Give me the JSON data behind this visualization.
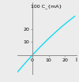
{
  "title": "",
  "xlabel": "i",
  "ylabel": "100 C_{mA}",
  "line_color": "#00d8f0",
  "line_width": 0.9,
  "xlim": [
    -9,
    27
  ],
  "ylim": [
    -14,
    40
  ],
  "xticks": [
    0,
    10,
    20
  ],
  "yticks": [
    10,
    20
  ],
  "x_tick_labels": [
    "0",
    "10",
    "20"
  ],
  "y_tick_labels": [
    "10",
    "20"
  ],
  "background_color": "#ececec",
  "axes_color": "#808080",
  "tick_fontsize": 4.5,
  "label_fontsize": 5.0,
  "ylabel_fontsize": 4.5,
  "figsize": [
    1.0,
    1.04
  ],
  "dpi": 100
}
